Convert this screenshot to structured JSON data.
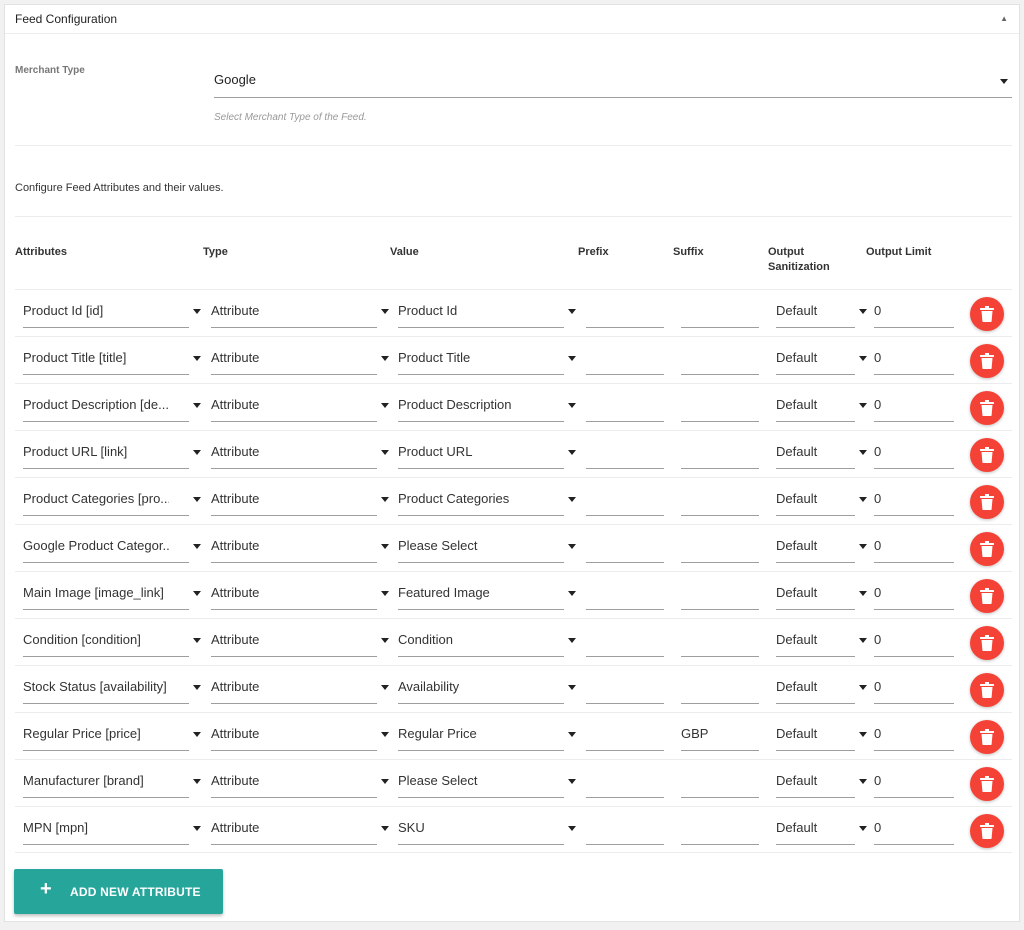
{
  "panel": {
    "title": "Feed Configuration",
    "toggle": "▲"
  },
  "merchant": {
    "label": "Merchant Type",
    "value": "Google",
    "help": "Select Merchant Type of the Feed."
  },
  "intro": "Configure Feed Attributes and their values.",
  "columns": {
    "attributes": "Attributes",
    "type": "Type",
    "value": "Value",
    "prefix": "Prefix",
    "suffix": "Suffix",
    "sanitization_line1": "Output",
    "sanitization_line2": "Sanitization",
    "limit": "Output Limit"
  },
  "rows": [
    {
      "attribute": "Product Id [id]",
      "type": "Attribute",
      "value": "Product Id",
      "prefix": "",
      "suffix": "",
      "sanitization": "Default",
      "limit": "0"
    },
    {
      "attribute": "Product Title [title]",
      "type": "Attribute",
      "value": "Product Title",
      "prefix": "",
      "suffix": "",
      "sanitization": "Default",
      "limit": "0"
    },
    {
      "attribute": "Product Description [de...",
      "type": "Attribute",
      "value": "Product Description",
      "prefix": "",
      "suffix": "",
      "sanitization": "Default",
      "limit": "0"
    },
    {
      "attribute": "Product URL [link]",
      "type": "Attribute",
      "value": "Product URL",
      "prefix": "",
      "suffix": "",
      "sanitization": "Default",
      "limit": "0"
    },
    {
      "attribute": "Product Categories [pro...",
      "type": "Attribute",
      "value": "Product Categories",
      "prefix": "",
      "suffix": "",
      "sanitization": "Default",
      "limit": "0"
    },
    {
      "attribute": "Google Product Categor...",
      "type": "Attribute",
      "value": "Please Select",
      "prefix": "",
      "suffix": "",
      "sanitization": "Default",
      "limit": "0"
    },
    {
      "attribute": "Main Image [image_link]",
      "type": "Attribute",
      "value": "Featured Image",
      "prefix": "",
      "suffix": "",
      "sanitization": "Default",
      "limit": "0"
    },
    {
      "attribute": "Condition [condition]",
      "type": "Attribute",
      "value": "Condition",
      "prefix": "",
      "suffix": "",
      "sanitization": "Default",
      "limit": "0"
    },
    {
      "attribute": "Stock Status [availability]",
      "type": "Attribute",
      "value": "Availability",
      "prefix": "",
      "suffix": "",
      "sanitization": "Default",
      "limit": "0"
    },
    {
      "attribute": "Regular Price [price]",
      "type": "Attribute",
      "value": "Regular Price",
      "prefix": "",
      "suffix": "GBP",
      "sanitization": "Default",
      "limit": "0"
    },
    {
      "attribute": "Manufacturer [brand]",
      "type": "Attribute",
      "value": "Please Select",
      "prefix": "",
      "suffix": "",
      "sanitization": "Default",
      "limit": "0"
    },
    {
      "attribute": "MPN [mpn]",
      "type": "Attribute",
      "value": "SKU",
      "prefix": "",
      "suffix": "",
      "sanitization": "Default",
      "limit": "0"
    }
  ],
  "add_button": {
    "icon": "+",
    "label": "ADD NEW ATTRIBUTE"
  },
  "colors": {
    "delete": "#f44336",
    "add": "#26a69a"
  }
}
